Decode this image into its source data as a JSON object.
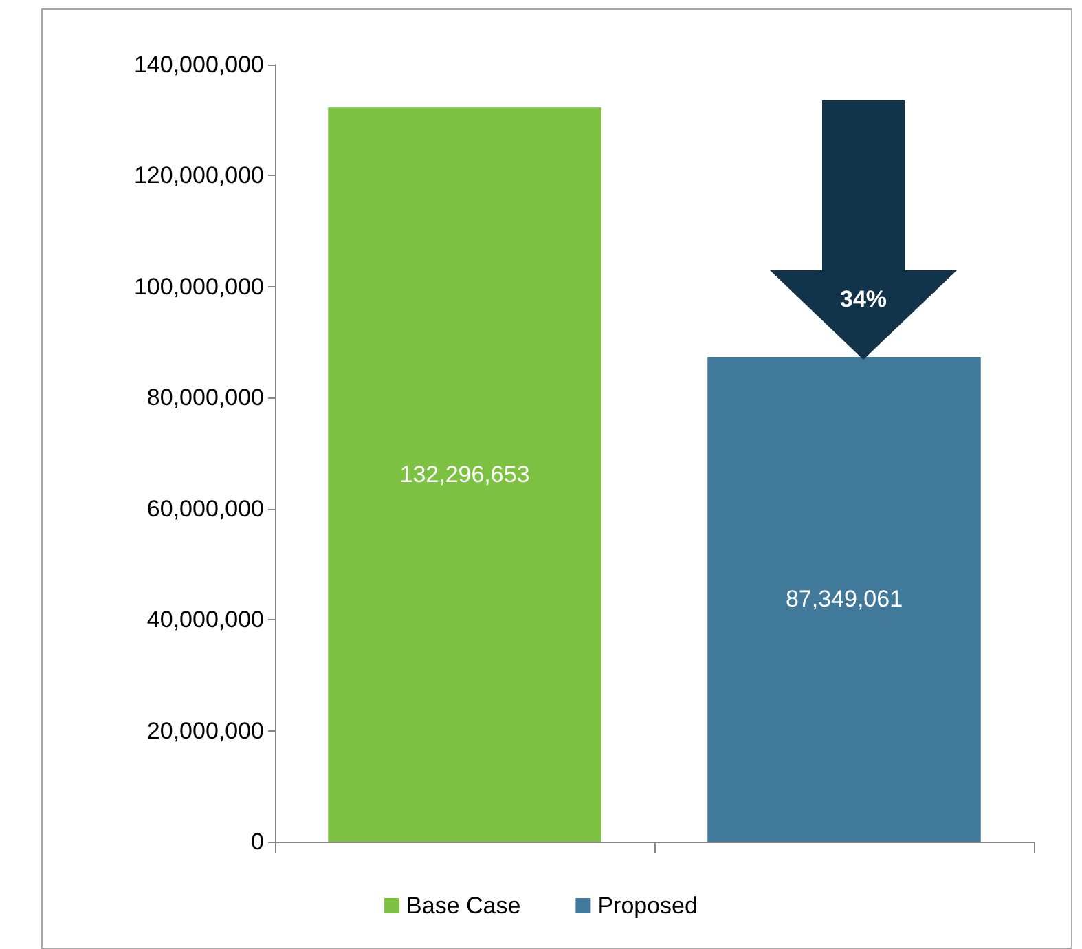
{
  "chart_data": {
    "type": "bar",
    "categories": [
      null,
      null
    ],
    "stacked": true,
    "series": [
      {
        "name": "Base Case",
        "color": "#7dc142",
        "values": [
          132296653,
          null
        ],
        "value_labels": [
          "132,296,653",
          null
        ]
      },
      {
        "name": "Proposed",
        "color": "#41799a",
        "values": [
          null,
          87349061
        ],
        "value_labels": [
          null,
          "87,349,061"
        ]
      }
    ],
    "ylim": [
      0,
      140000000
    ],
    "yticks": [
      0,
      {
        "value": 20000000,
        "label": "20,000,000"
      },
      {
        "value": 40000000,
        "label": "40,000,000"
      },
      {
        "value": 60000000,
        "label": "60,000,000"
      },
      {
        "value": 80000000,
        "label": "80,000,000"
      },
      {
        "value": 100000000,
        "label": "100,000,000"
      },
      {
        "value": 120000000,
        "label": "120,000,000"
      },
      {
        "value": 140000000,
        "label": "140,000,000"
      }
    ],
    "grid": false,
    "legend": "bottom",
    "annotations": [
      "34%"
    ]
  }
}
